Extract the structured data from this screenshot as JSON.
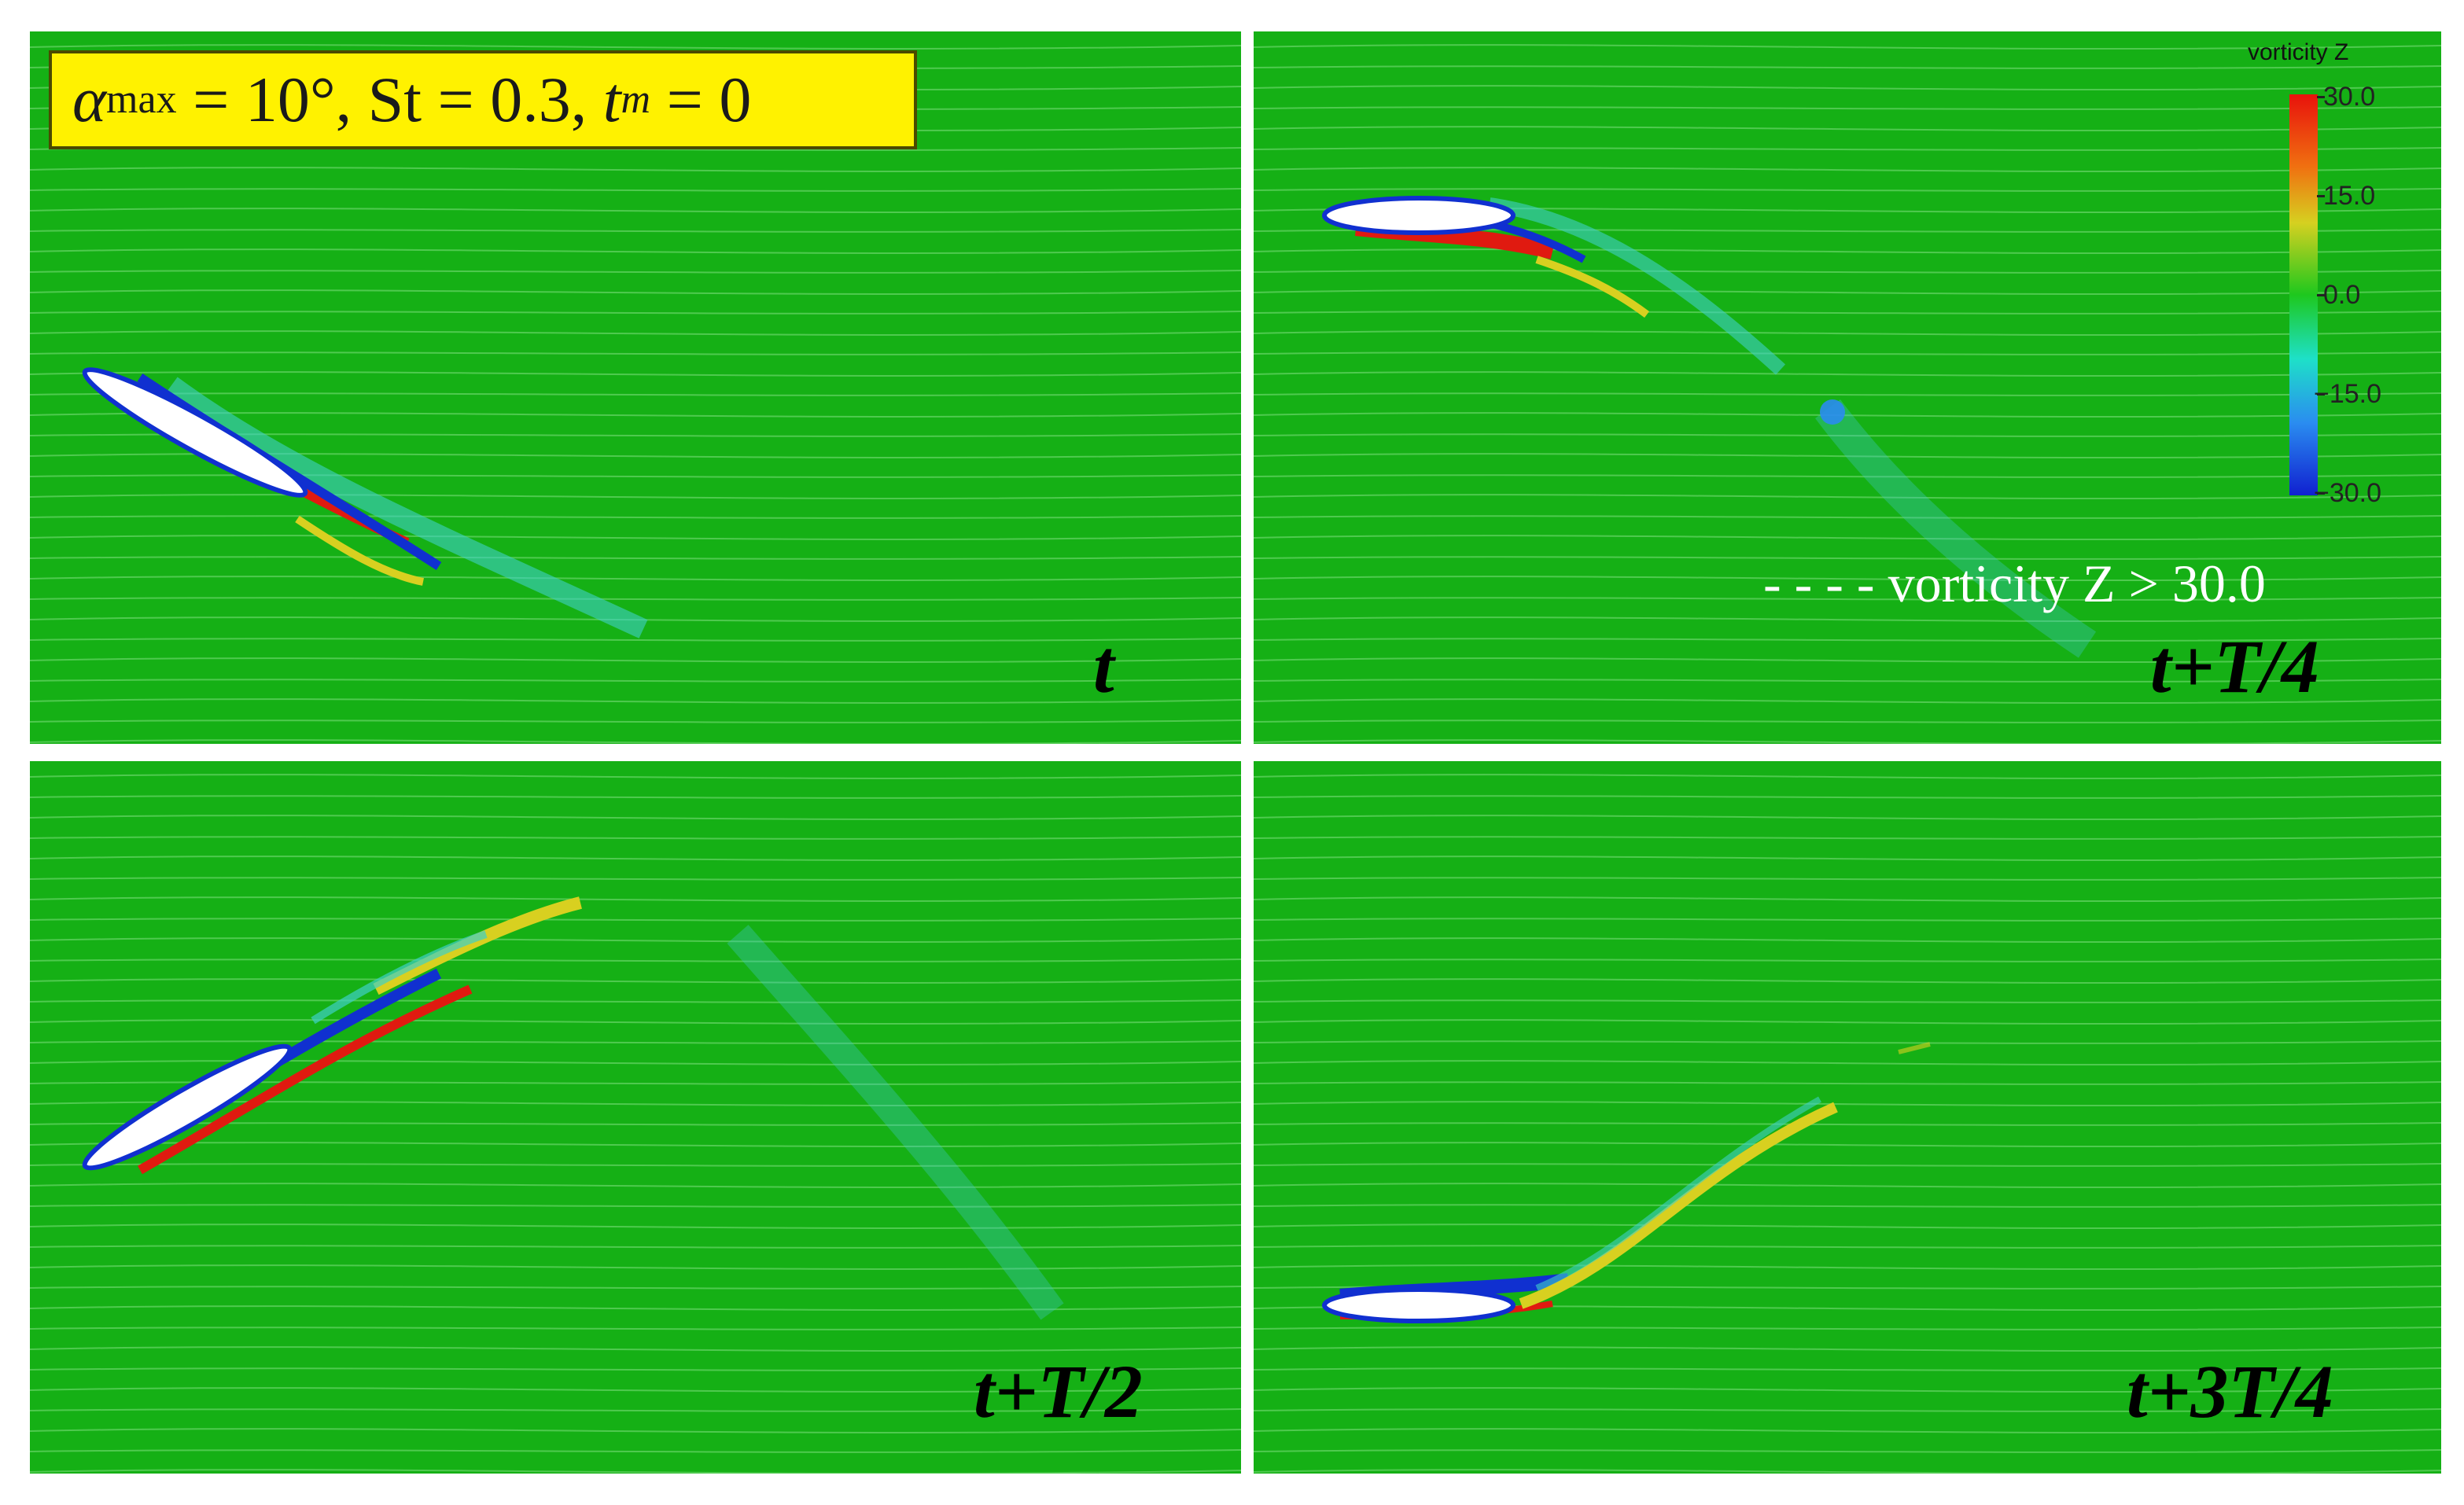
{
  "parameters": {
    "alpha_symbol": "α",
    "alpha_subscript": "max",
    "alpha_value": " = 10°, St = 0.3, ",
    "tm_symbol": "t",
    "tm_subscript": "m",
    "tm_value": " = 0"
  },
  "panels": [
    {
      "label": "t"
    },
    {
      "label": "t+T/4"
    },
    {
      "label": "t+T/2"
    },
    {
      "label": "t+3T/4"
    }
  ],
  "colorbar": {
    "title": "vorticity Z",
    "ticks": [
      "30.0",
      "15.0",
      "0.0",
      "−15.0",
      "−30.0"
    ],
    "colors": {
      "max": "#e8120c",
      "mid": "#1ec81e",
      "min": "#1020d0"
    }
  },
  "legend": {
    "dash": "- - - -",
    "text": "vorticity Z > 30.0"
  },
  "colors": {
    "background_field": "#15b015",
    "streamline": "#7fe07f",
    "airfoil": "#ffffff"
  }
}
